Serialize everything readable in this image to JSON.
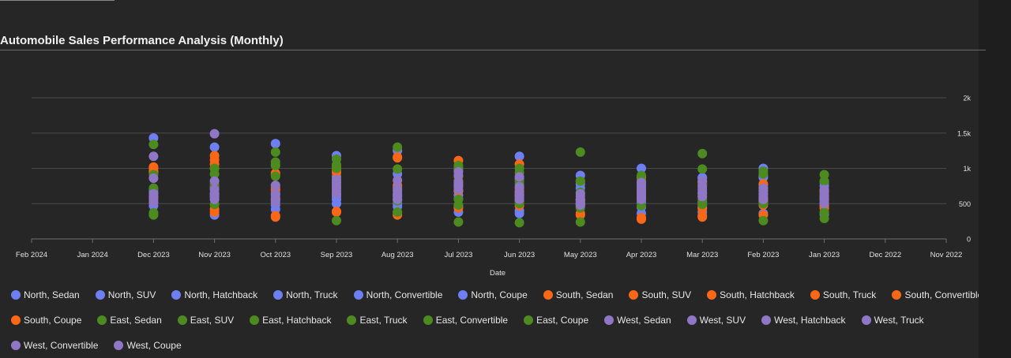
{
  "title": "Automobile Sales Performance Analysis (Monthly)",
  "colors": {
    "North": "#6e7ff3",
    "South": "#fa6716",
    "East": "#4d8a1f",
    "West": "#8f77c6"
  },
  "chart_data": {
    "type": "scatter",
    "title": "Automobile Sales Performance Analysis (Monthly)",
    "xlabel": "Date",
    "ylabel": "",
    "x_axis_ticks": [
      "Feb 2024",
      "Jan 2024",
      "Dec 2023",
      "Nov 2023",
      "Oct 2023",
      "Sep 2023",
      "Aug 2023",
      "Jul 2023",
      "Jun 2023",
      "May 2023",
      "Apr 2023",
      "Mar 2023",
      "Feb 2023",
      "Jan 2023",
      "Dec 2022",
      "Nov 2022"
    ],
    "y_ticks": [
      "0",
      "500",
      "1k",
      "1.5k",
      "2k"
    ],
    "ylim": [
      0,
      2000
    ],
    "y_axis_side": "right",
    "x_axis_reversed": true,
    "legend_placement": "bottom",
    "grid": true,
    "months": [
      "Dec 2023",
      "Nov 2023",
      "Oct 2023",
      "Sep 2023",
      "Aug 2023",
      "Jul 2023",
      "Jun 2023",
      "May 2023",
      "Apr 2023",
      "Mar 2023",
      "Feb 2023",
      "Jan 2023"
    ],
    "series": [
      {
        "name": "North, Sedan",
        "region": "North",
        "values": [
          1430,
          740,
          1350,
          1180,
          1250,
          680,
          850,
          900,
          1000,
          870,
          1000,
          800
        ]
      },
      {
        "name": "North, SUV",
        "region": "North",
        "values": [
          700,
          1300,
          650,
          880,
          920,
          980,
          1170,
          720,
          760,
          520,
          870,
          750
        ]
      },
      {
        "name": "North, Hatchback",
        "region": "North",
        "values": [
          520,
          650,
          560,
          640,
          640,
          570,
          540,
          460,
          630,
          450,
          520,
          580
        ]
      },
      {
        "name": "North, Truck",
        "region": "North",
        "values": [
          600,
          720,
          700,
          500,
          500,
          620,
          400,
          500,
          450,
          380,
          760,
          620
        ]
      },
      {
        "name": "North, Convertible",
        "region": "North",
        "values": [
          660,
          600,
          420,
          560,
          560,
          380,
          620,
          780,
          520,
          860,
          900,
          350
        ]
      },
      {
        "name": "North, Coupe",
        "region": "North",
        "values": [
          470,
          340,
          480,
          600,
          460,
          460,
          360,
          500,
          360,
          480,
          360,
          520
        ]
      },
      {
        "name": "South, Sedan",
        "region": "South",
        "values": [
          1020,
          1180,
          930,
          1000,
          1160,
          1110,
          1060,
          820,
          870,
          810,
          780,
          690
        ]
      },
      {
        "name": "South, SUV",
        "region": "South",
        "values": [
          960,
          1060,
          910,
          980,
          740,
          780,
          720,
          560,
          800,
          770,
          580,
          620
        ]
      },
      {
        "name": "South, Hatchback",
        "region": "South",
        "values": [
          1000,
          420,
          330,
          390,
          380,
          440,
          470,
          360,
          300,
          330,
          340,
          480
        ]
      },
      {
        "name": "South, Truck",
        "region": "South",
        "values": [
          950,
          1120,
          730,
          1040,
          1150,
          680,
          640,
          540,
          720,
          430,
          680,
          430
        ]
      },
      {
        "name": "South, Convertible",
        "region": "South",
        "values": [
          940,
          1000,
          690,
          940,
          760,
          820,
          680,
          340,
          860,
          790,
          540,
          460
        ]
      },
      {
        "name": "South, Coupe",
        "region": "South",
        "values": [
          1010,
          380,
          310,
          380,
          340,
          460,
          580,
          560,
          280,
          310,
          480,
          670
        ]
      },
      {
        "name": "East, Sedan",
        "region": "East",
        "values": [
          1340,
          1000,
          1230,
          1130,
          1300,
          1040,
          1000,
          1230,
          830,
          1210,
          960,
          910
        ]
      },
      {
        "name": "East, SUV",
        "region": "East",
        "values": [
          910,
          780,
          1090,
          1050,
          990,
          1010,
          940,
          490,
          640,
          990,
          920,
          540
        ]
      },
      {
        "name": "East, Hatchback",
        "region": "East",
        "values": [
          720,
          750,
          1040,
          800,
          600,
          480,
          780,
          820,
          900,
          600,
          630,
          820
        ]
      },
      {
        "name": "East, Truck",
        "region": "East",
        "values": [
          370,
          490,
          540,
          260,
          380,
          240,
          230,
          240,
          470,
          560,
          260,
          290
        ]
      },
      {
        "name": "East, Convertible",
        "region": "East",
        "values": [
          340,
          620,
          1050,
          720,
          540,
          880,
          500,
          440,
          580,
          490,
          720,
          380
        ]
      },
      {
        "name": "East, Coupe",
        "region": "East",
        "values": [
          580,
          920,
          890,
          1000,
          700,
          560,
          820,
          660,
          690,
          780,
          500,
          640
        ]
      },
      {
        "name": "West, Sedan",
        "region": "West",
        "values": [
          1170,
          1490,
          760,
          840,
          830,
          950,
          880,
          500,
          800,
          660,
          560,
          700
        ]
      },
      {
        "name": "West, SUV",
        "region": "West",
        "values": [
          860,
          820,
          640,
          760,
          720,
          900,
          740,
          640,
          680,
          820,
          680,
          560
        ]
      },
      {
        "name": "West, Hatchback",
        "region": "West",
        "values": [
          640,
          560,
          520,
          680,
          600,
          760,
          600,
          560,
          600,
          740,
          600,
          600
        ]
      },
      {
        "name": "West, Truck",
        "region": "West",
        "values": [
          600,
          700,
          580,
          800,
          620,
          700,
          560,
          600,
          720,
          640,
          720,
          500
        ]
      },
      {
        "name": "West, Convertible",
        "region": "West",
        "values": [
          560,
          640,
          620,
          720,
          680,
          800,
          660,
          520,
          640,
          700,
          640,
          660
        ]
      },
      {
        "name": "West, Coupe",
        "region": "West",
        "values": [
          520,
          600,
          560,
          640,
          560,
          740,
          620,
          480,
          560,
          600,
          560,
          560
        ]
      }
    ]
  }
}
